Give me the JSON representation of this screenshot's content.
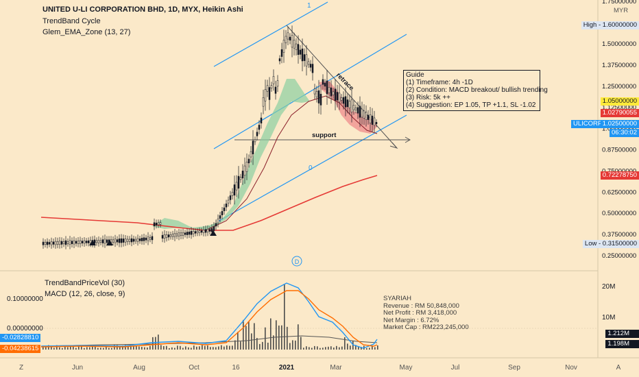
{
  "header": {
    "title": "UNITED U-LI CORPORATION BHD, 1D, MYX, Heikin Ashi",
    "indicator_1": "TrendBand Cycle",
    "indicator_2": "Glem_EMA_Zone (13, 27)"
  },
  "currency_label": "MYR",
  "guide": {
    "title": "Guide",
    "lines": [
      "(1) Timeframe: 4h -1D",
      "(2) Condition: MACD breakout/ bullish trending",
      "(3) Risk: 5k ++",
      "(4) Suggestion: EP 1.05, TP +1.1, SL -1.02"
    ]
  },
  "annotations": {
    "retrace": "retrace",
    "support": "support",
    "channel_top": "1",
    "channel_bottom": "0",
    "dividend_marker": "D"
  },
  "price_axis": {
    "ticks": [
      "1.75000000",
      "1.60000000",
      "1.50000000",
      "1.37500000",
      "1.25000000",
      "1.12500000",
      "1.00000000",
      "0.87500000",
      "0.75000000",
      "0.62500000",
      "0.50000000",
      "0.37500000",
      "0.25000000"
    ],
    "high_label": "High",
    "high_value": "1.60000000",
    "low_label": "Low",
    "low_value": "0.31500000",
    "level_1": "1.05000000",
    "level_2": "1.02790055",
    "ticker": "ULICORP",
    "last_price": "1.02500000",
    "countdown": "06:30:02",
    "ema_value": "0.72278750"
  },
  "lower_pane": {
    "indicator_1": "TrendBandPriceVol (30)",
    "indicator_2": "MACD (12, 26, close, 9)",
    "left_ticks": [
      "0.10000000",
      "0.00000000"
    ],
    "macd_value": "-0.02828810",
    "signal_value": "-0.04238615",
    "vol_ticks": [
      "20M",
      "10M"
    ],
    "vol_value_1": "1.212M",
    "vol_value_2": "1.198M"
  },
  "fundamentals": {
    "title": "SYARIAH",
    "lines": [
      "Revenue : RM 50,848,000",
      "Net Profit : RM 3,418,000",
      "Net Margin : 6.72%",
      "Market Cap : RM223,245,000"
    ]
  },
  "time_axis": {
    "labels": [
      "Jun",
      "Aug",
      "Oct",
      "16",
      "2021",
      "Mar",
      "May",
      "Jul",
      "Sep",
      "Nov"
    ]
  },
  "footer": {
    "left_button": "Z",
    "right_button": "A"
  },
  "colors": {
    "background": "#fbe9c9",
    "channel": "#2196f3",
    "ema_red": "#e53935",
    "macd": "#2196f3",
    "signal": "#ff6d00",
    "bull_zone": "#8ccfa1",
    "bear_zone": "#ef8c8c",
    "candle": "#131722"
  },
  "chart_data": [
    {
      "type": "line",
      "title": "UNITED U-LI CORPORATION BHD, 1D, MYX, Heikin Ashi",
      "x": [
        "Jun",
        "Aug",
        "Oct",
        "16",
        "2021",
        "Mar",
        "May"
      ],
      "series": [
        {
          "name": "ULICORP",
          "values": [
            0.32,
            0.34,
            0.4,
            0.78,
            1.55,
            1.22,
            1.025
          ]
        },
        {
          "name": "Glem_EMA_Zone (13, 27)",
          "values": [
            0.33,
            0.36,
            0.41,
            0.6,
            1.1,
            1.2,
            1.05
          ]
        },
        {
          "name": "EMA",
          "values": [
            0.45,
            0.41,
            0.38,
            0.4,
            0.52,
            0.64,
            0.72
          ]
        }
      ],
      "ylim": [
        0.25,
        1.8
      ],
      "ylabel": "MYR"
    },
    {
      "type": "line",
      "title": "MACD (12, 26, close, 9)",
      "x": [
        "Jun",
        "Aug",
        "Oct",
        "16",
        "2021",
        "Mar",
        "May"
      ],
      "series": [
        {
          "name": "MACD",
          "values": [
            0.002,
            0.005,
            0.008,
            0.055,
            0.14,
            -0.01,
            -0.028
          ]
        },
        {
          "name": "Signal",
          "values": [
            0.001,
            0.003,
            0.006,
            0.04,
            0.125,
            0.01,
            -0.042
          ]
        }
      ],
      "ylim": [
        -0.05,
        0.16
      ]
    }
  ]
}
